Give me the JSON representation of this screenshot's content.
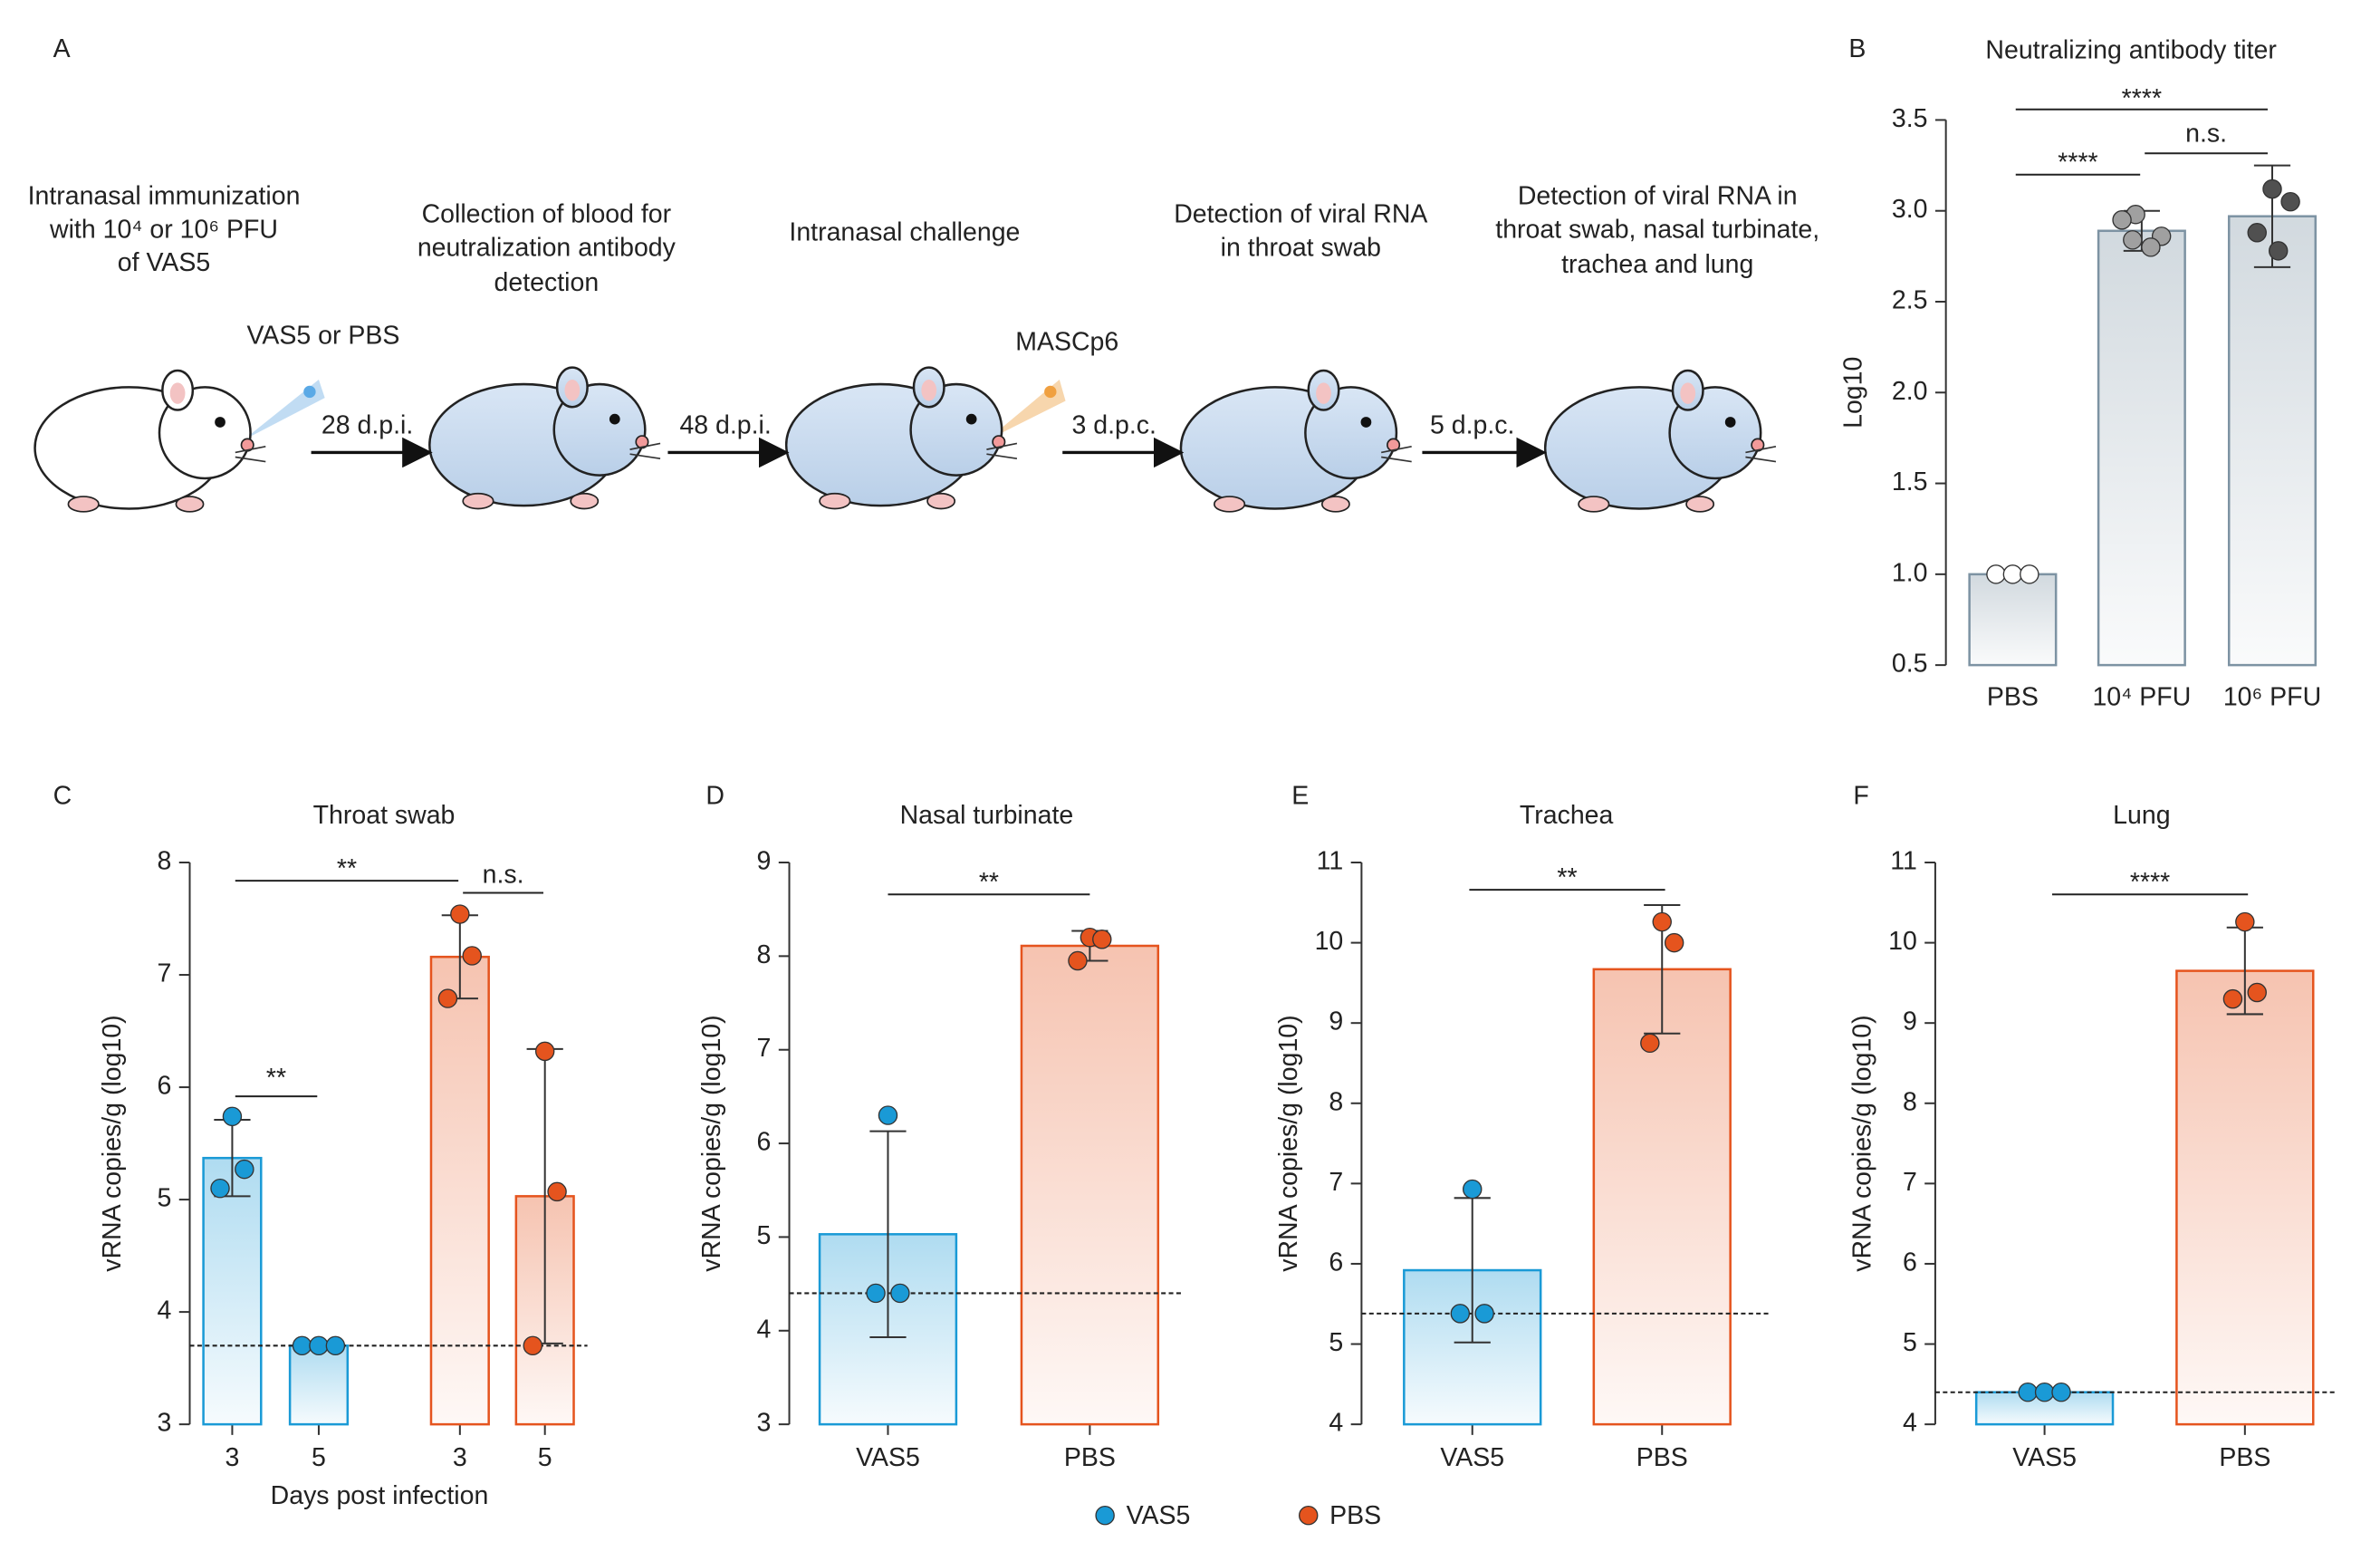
{
  "diagram": {
    "panel_label": "A",
    "steps": [
      [
        "Intranasal immunization",
        "with 10⁴ or 10⁶ PFU",
        "of VAS5"
      ],
      [
        "Collection of blood for",
        "neutralization antibody",
        "detection"
      ],
      [
        "Intranasal challenge"
      ],
      [
        "Detection of viral RNA",
        "in throat swab"
      ],
      [
        "Detection of viral RNA in",
        "throat swab, nasal turbinate,",
        "trachea and lung"
      ]
    ],
    "intervals": [
      "28 d.p.i.",
      "48 d.p.i.",
      "3 d.p.c.",
      "5 d.p.c."
    ],
    "treatment": "VAS5 or PBS",
    "challenge": "MASCp6"
  },
  "chart_data": [
    {
      "type": "bar",
      "panel_label": "B",
      "title": "Neutralizing antibody titer",
      "ylabel": "Log10",
      "categories": [
        "PBS",
        "10⁴ PFU",
        "10⁶ PFU"
      ],
      "values": [
        1.0,
        2.89,
        2.97
      ],
      "errors": [
        0,
        0.11,
        0.28
      ],
      "points": [
        [
          1.0,
          1.0,
          1.0
        ],
        [
          2.98,
          2.86,
          2.8,
          2.95,
          2.84
        ],
        [
          3.12,
          3.05,
          2.88,
          2.78
        ]
      ],
      "color": "#7d93a3",
      "point_colors": [
        "#ffffff",
        "#a0a0a0",
        "#505050"
      ],
      "ylim": [
        0.5,
        3.5
      ],
      "yticks": [
        0.5,
        {
          "value": 1,
          "label": "1.0"
        },
        1.5,
        {
          "value": 2,
          "label": "2.0"
        },
        2.5,
        {
          "value": 3,
          "label": "3.0"
        },
        3.5
      ],
      "annotations": [
        "****",
        "n.s.",
        "****"
      ]
    },
    {
      "type": "bar",
      "panel_label": "C",
      "title": "Throat swab",
      "ylabel": "vRNA copies/g (log10)",
      "xlabel": "Days post infection",
      "categories": [
        "3",
        "5",
        "3",
        "5"
      ],
      "series": [
        {
          "name": "VAS5",
          "color": "#1a9ad6",
          "values": [
            5.37,
            3.7,
            null,
            null
          ],
          "errors": [
            0.34,
            0,
            null,
            null
          ],
          "points": [
            [
              5.74,
              5.27,
              5.1
            ],
            [
              3.7,
              3.7,
              3.7
            ],
            null,
            null
          ]
        },
        {
          "name": "PBS",
          "color": "#e5541e",
          "values": [
            null,
            null,
            7.16,
            5.03
          ],
          "errors": [
            null,
            null,
            0.37,
            1.31
          ],
          "points": [
            null,
            null,
            [
              7.54,
              7.17,
              6.79
            ],
            [
              6.32,
              5.07,
              3.7
            ]
          ]
        }
      ],
      "ylim": [
        3,
        8
      ],
      "yticks": [
        3,
        4,
        5,
        6,
        7,
        8
      ],
      "detection_limit": 3.7,
      "annotations": [
        "**",
        "n.s.",
        "**"
      ]
    },
    {
      "type": "bar",
      "panel_label": "D",
      "title": "Nasal turbinate",
      "ylabel": "vRNA copies/g (log10)",
      "categories": [
        "VAS5",
        "PBS"
      ],
      "series": [
        {
          "name": "VAS5",
          "color": "#1a9ad6",
          "values": [
            5.03,
            null
          ],
          "errors": [
            1.1,
            null
          ],
          "points": [
            [
              6.3,
              4.4,
              4.4
            ],
            null
          ]
        },
        {
          "name": "PBS",
          "color": "#e5541e",
          "values": [
            null,
            8.11
          ],
          "errors": [
            null,
            0.16
          ],
          "points": [
            null,
            [
              8.2,
              8.18,
              7.95
            ]
          ]
        }
      ],
      "ylim": [
        3,
        9
      ],
      "yticks": [
        3,
        4,
        5,
        6,
        7,
        8,
        9
      ],
      "detection_limit": 4.4,
      "annotations": [
        "**"
      ]
    },
    {
      "type": "bar",
      "panel_label": "E",
      "title": "Trachea",
      "ylabel": "vRNA copies/g (log10)",
      "categories": [
        "VAS5",
        "PBS"
      ],
      "series": [
        {
          "name": "VAS5",
          "color": "#1a9ad6",
          "values": [
            5.92,
            null
          ],
          "errors": [
            0.9,
            null
          ],
          "points": [
            [
              6.93,
              5.38,
              5.38
            ],
            null
          ]
        },
        {
          "name": "PBS",
          "color": "#e5541e",
          "values": [
            null,
            9.67
          ],
          "errors": [
            null,
            0.8
          ],
          "points": [
            null,
            [
              10.26,
              10.0,
              8.75
            ]
          ]
        }
      ],
      "ylim": [
        4,
        11
      ],
      "yticks": [
        4,
        5,
        6,
        7,
        8,
        9,
        10,
        11
      ],
      "detection_limit": 5.38,
      "annotations": [
        "**"
      ]
    },
    {
      "type": "bar",
      "panel_label": "F",
      "title": "Lung",
      "ylabel": "vRNA copies/g (log10)",
      "categories": [
        "VAS5",
        "PBS"
      ],
      "series": [
        {
          "name": "VAS5",
          "color": "#1a9ad6",
          "values": [
            4.4,
            null
          ],
          "errors": [
            0,
            null
          ],
          "points": [
            [
              4.4,
              4.4,
              4.4
            ],
            null
          ]
        },
        {
          "name": "PBS",
          "color": "#e5541e",
          "values": [
            null,
            9.65
          ],
          "errors": [
            null,
            0.54
          ],
          "points": [
            null,
            [
              10.26,
              9.38,
              9.3
            ]
          ]
        }
      ],
      "ylim": [
        4,
        11
      ],
      "yticks": [
        4,
        5,
        6,
        7,
        8,
        9,
        10,
        11
      ],
      "detection_limit": 4.4,
      "annotations": [
        "****"
      ]
    }
  ]
}
